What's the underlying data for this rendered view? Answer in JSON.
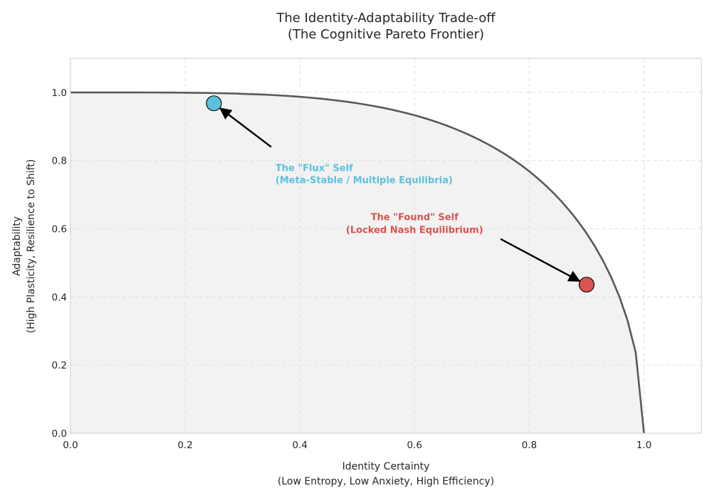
{
  "chart_data": {
    "type": "line",
    "title_lines": [
      "The Identity-Adaptability Trade-off",
      "(The Cognitive Pareto Frontier)"
    ],
    "xlabel_lines": [
      "Identity Certainty",
      "(Low Entropy, Low Anxiety, High Efficiency)"
    ],
    "ylabel_lines": [
      "Adaptability",
      "(High Plasticity, Resilience to Shift)"
    ],
    "xlim": [
      0,
      1.1
    ],
    "ylim": [
      0,
      1.1
    ],
    "xticks": [
      0.0,
      0.2,
      0.4,
      0.6,
      0.8,
      1.0
    ],
    "yticks": [
      0.0,
      0.2,
      0.4,
      0.6,
      0.8,
      1.0
    ],
    "xtick_labels": [
      "0.0",
      "0.2",
      "0.4",
      "0.6",
      "0.8",
      "1.0"
    ],
    "ytick_labels": [
      "0.0",
      "0.2",
      "0.4",
      "0.6",
      "0.8",
      "1.0"
    ],
    "grid": true,
    "frontier": {
      "name": "Pareto frontier",
      "equation": "y = sqrt(1 - x^4)",
      "x_range": [
        0,
        1
      ],
      "color": "#595959",
      "fill_below": true,
      "fill_color": "#f2f2f2"
    },
    "points": [
      {
        "name": "flux-self",
        "x": 0.25,
        "y": 0.968,
        "color": "#5bc0de",
        "label_lines": [
          "The \"Flux\" Self",
          "(Meta-Stable / Multiple Equilibria)"
        ],
        "label_at": [
          0.35,
          0.8
        ],
        "label_align": "start"
      },
      {
        "name": "found-self",
        "x": 0.9,
        "y": 0.436,
        "color": "#d9534f",
        "label_lines": [
          "The \"Found\" Self",
          "(Locked Nash Equilibrium)"
        ],
        "label_at": [
          0.6,
          0.6
        ],
        "label_align": "middle",
        "arrow_from": [
          0.75,
          0.57
        ]
      }
    ]
  }
}
